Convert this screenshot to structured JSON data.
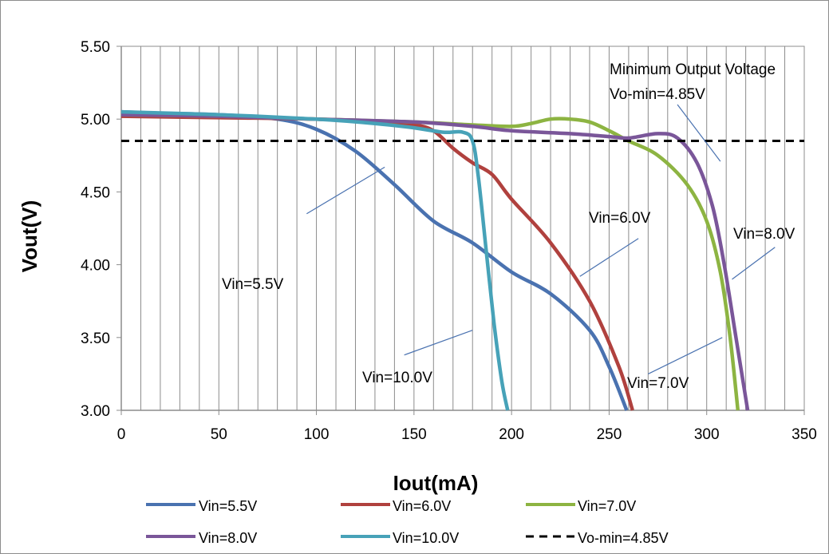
{
  "chart_data": {
    "type": "line",
    "xlabel": "Iout(mA)",
    "ylabel": "Vout(V)",
    "xlim": [
      0,
      350
    ],
    "ylim": [
      3.0,
      5.5
    ],
    "x_ticks": [
      "0",
      "50",
      "100",
      "150",
      "200",
      "250",
      "300",
      "350"
    ],
    "y_ticks": [
      "3.00",
      "3.50",
      "4.00",
      "4.50",
      "5.00",
      "5.50"
    ],
    "grid": "vertical lines every 10 mA",
    "legend_position": "bottom",
    "series": [
      {
        "name": "Vin=5.5V",
        "color": "#4a72b0",
        "x": [
          0,
          20,
          50,
          80,
          100,
          120,
          140,
          160,
          180,
          200,
          220,
          240,
          250,
          259
        ],
        "y": [
          5.05,
          5.04,
          5.03,
          5.0,
          4.93,
          4.78,
          4.55,
          4.3,
          4.15,
          3.95,
          3.8,
          3.55,
          3.3,
          3.0
        ]
      },
      {
        "name": "Vin=6.0V",
        "color": "#b0413e",
        "x": [
          0,
          50,
          100,
          130,
          150,
          160,
          170,
          180,
          190,
          200,
          220,
          240,
          255,
          262
        ],
        "y": [
          5.02,
          5.01,
          5.0,
          4.98,
          4.96,
          4.92,
          4.8,
          4.7,
          4.62,
          4.45,
          4.15,
          3.75,
          3.3,
          3.0
        ]
      },
      {
        "name": "Vin=7.0V",
        "color": "#8db442",
        "x": [
          0,
          50,
          100,
          150,
          180,
          200,
          210,
          220,
          230,
          240,
          250,
          260,
          275,
          290,
          300,
          307,
          312,
          316
        ],
        "y": [
          5.03,
          5.02,
          5.0,
          4.98,
          4.96,
          4.95,
          4.97,
          5.0,
          5.0,
          4.98,
          4.92,
          4.85,
          4.75,
          4.55,
          4.3,
          3.95,
          3.5,
          3.0
        ]
      },
      {
        "name": "Vin=8.0V",
        "color": "#7a5699",
        "x": [
          0,
          50,
          100,
          150,
          180,
          200,
          230,
          250,
          260,
          275,
          285,
          295,
          303,
          309,
          315,
          321
        ],
        "y": [
          5.03,
          5.02,
          5.0,
          4.98,
          4.95,
          4.92,
          4.9,
          4.88,
          4.87,
          4.9,
          4.87,
          4.7,
          4.4,
          4.0,
          3.5,
          3.0
        ]
      },
      {
        "name": "Vin=10.0V",
        "color": "#47a2b8",
        "x": [
          0,
          50,
          100,
          130,
          150,
          165,
          175,
          180,
          183,
          187,
          191,
          195,
          198
        ],
        "y": [
          5.05,
          5.03,
          5.0,
          4.97,
          4.94,
          4.91,
          4.91,
          4.85,
          4.6,
          4.1,
          3.6,
          3.2,
          3.0
        ]
      },
      {
        "name": "Vo-min=4.85V",
        "color": "#000000",
        "dashed": true,
        "x": [
          0,
          350
        ],
        "y": [
          4.85,
          4.85
        ]
      }
    ],
    "annotations": [
      {
        "text": "Vin=5.5V",
        "leader": [
          [
            135,
            4.67
          ],
          [
            95,
            4.35
          ]
        ]
      },
      {
        "text": "Vin=6.0V",
        "leader": [
          [
            235,
            3.92
          ],
          [
            265,
            4.18
          ]
        ]
      },
      {
        "text": "Vin=10.0V",
        "leader": [
          [
            180,
            3.55
          ],
          [
            145,
            3.38
          ]
        ]
      },
      {
        "text": "Vin=7.0V",
        "leader": [
          [
            308,
            3.5
          ],
          [
            270,
            3.25
          ]
        ]
      },
      {
        "text": "Vin=8.0V",
        "leader": [
          [
            313,
            3.9
          ],
          [
            335,
            4.12
          ]
        ]
      },
      {
        "text": "Minimum Output Voltage",
        "leader": null
      },
      {
        "text": "Vo-min=4.85V",
        "leader": [
          [
            285,
            5.1
          ],
          [
            307,
            4.71
          ]
        ]
      }
    ]
  }
}
